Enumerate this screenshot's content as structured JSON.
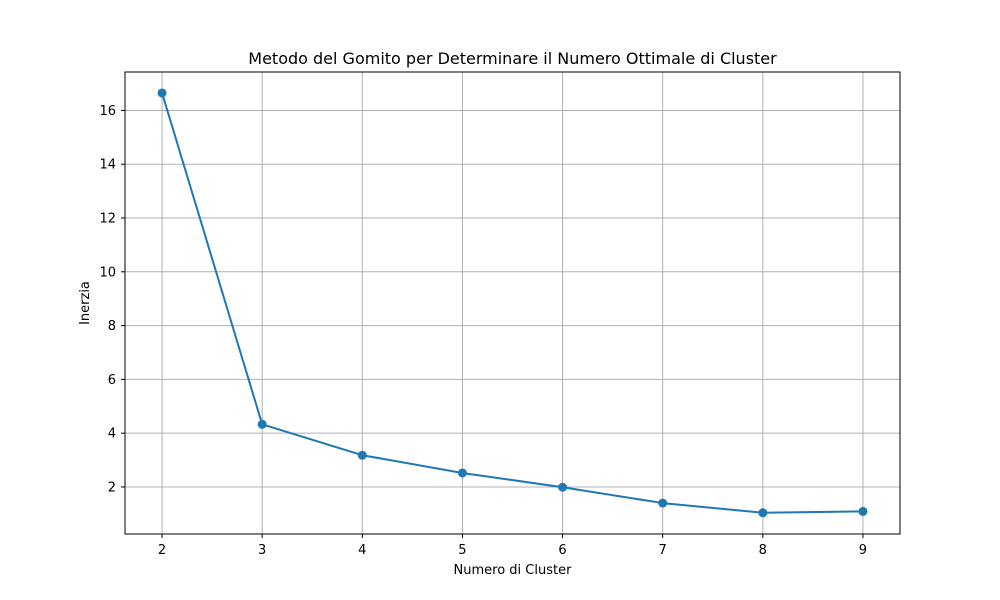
{
  "chart_data": {
    "type": "line",
    "title": "Metodo del Gomito per Determinare il Numero Ottimale di Cluster",
    "xlabel": "Numero di Cluster",
    "ylabel": "Inerzia",
    "x": [
      2,
      3,
      4,
      5,
      6,
      7,
      8,
      9
    ],
    "series": [
      {
        "values": [
          16.65,
          4.33,
          3.18,
          2.52,
          1.99,
          1.4,
          1.04,
          1.09
        ],
        "color": "#1f77b4",
        "marker": "circle"
      }
    ],
    "xlim": [
      1.63,
      9.37
    ],
    "ylim": [
      0.25,
      17.43
    ],
    "xticks": [
      2,
      3,
      4,
      5,
      6,
      7,
      8,
      9
    ],
    "yticks": [
      2,
      4,
      6,
      8,
      10,
      12,
      14,
      16
    ],
    "grid": true
  }
}
